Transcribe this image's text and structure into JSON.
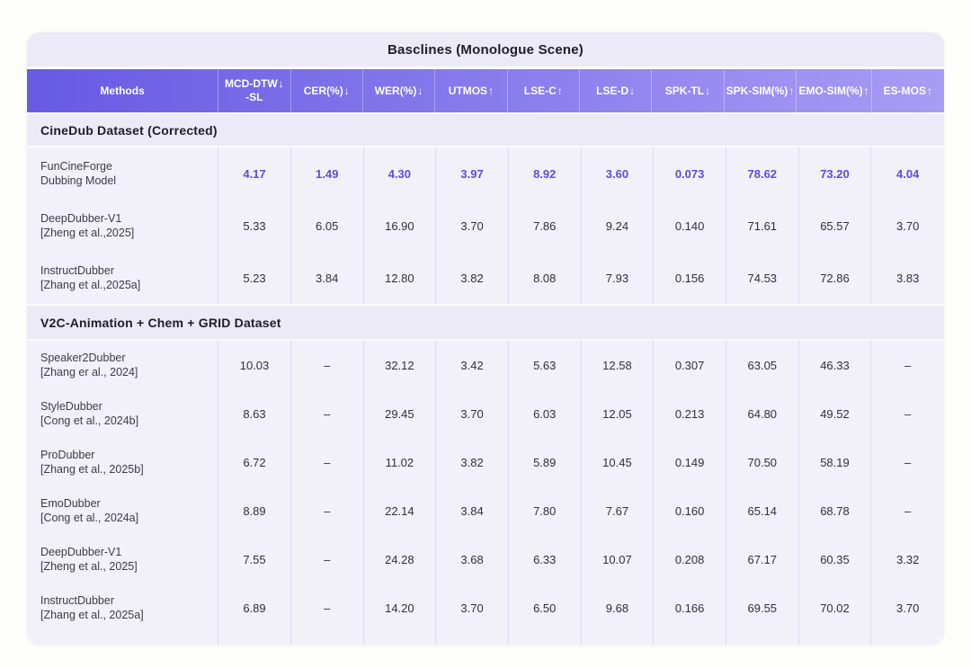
{
  "title": "Basclines (Monologue Scene)",
  "icons": {
    "arrow_up": "↑",
    "arrow_down": "↓"
  },
  "colors": {
    "page_bg": "#FDFDF9",
    "card_bg": "#ECEAF6",
    "data_bg": "#F2F1FA",
    "header_gradient_start": "#675AE4",
    "header_gradient_end": "#A89CF4",
    "header_text": "#FFFFFF",
    "divider_light": "#FAFAFD",
    "cell_border": "#DBD8EA",
    "heading_text": "#1E1D2B",
    "method_text": "#3C3B49",
    "value_text": "#302F3C",
    "highlight_value": "#5D4CDC"
  },
  "chart_data": {
    "type": "table",
    "title": "Basclines (Monologue Scene)",
    "columns": [
      {
        "label": "Methods",
        "line2": null,
        "arrow": null
      },
      {
        "label": "MCD-DTW",
        "line2": "-SL",
        "arrow": "down"
      },
      {
        "label": "CER(%)",
        "line2": null,
        "arrow": "down"
      },
      {
        "label": "WER(%)",
        "line2": null,
        "arrow": "down"
      },
      {
        "label": "UTMOS",
        "line2": null,
        "arrow": "up"
      },
      {
        "label": "LSE-C",
        "line2": null,
        "arrow": "up"
      },
      {
        "label": "LSE-D",
        "line2": null,
        "arrow": "down"
      },
      {
        "label": "SPK-TL",
        "line2": null,
        "arrow": "down"
      },
      {
        "label": "SPK-SIM(%)",
        "line2": null,
        "arrow": "up"
      },
      {
        "label": "EMO-SIM(%)",
        "line2": null,
        "arrow": "up"
      },
      {
        "label": "ES-MOS",
        "line2": null,
        "arrow": "up"
      }
    ],
    "sections": [
      {
        "heading": "CineDub Dataset (Corrected)",
        "rows": [
          {
            "line1": "FunCineForge",
            "line2": "Dubbing Model",
            "highlight": true,
            "values": [
              "4.17",
              "1.49",
              "4.30",
              "3.97",
              "8.92",
              "3.60",
              "0.073",
              "78.62",
              "73.20",
              "4.04"
            ]
          },
          {
            "line1": "DeepDubber-V1",
            "line2": "[Zheng et al.,2025]",
            "highlight": false,
            "values": [
              "5.33",
              "6.05",
              "16.90",
              "3.70",
              "7.86",
              "9.24",
              "0.140",
              "71.61",
              "65.57",
              "3.70"
            ]
          },
          {
            "line1": "InstructDubber",
            "line2": "[Zhang et al.,2025a]",
            "highlight": false,
            "values": [
              "5.23",
              "3.84",
              "12.80",
              "3.82",
              "8.08",
              "7.93",
              "0.156",
              "74.53",
              "72.86",
              "3.83"
            ]
          }
        ]
      },
      {
        "heading": "V2C-Animation + Chem + GRID Dataset",
        "rows": [
          {
            "line1": "Speaker2Dubber",
            "line2": "[Zhang er al., 2024]",
            "highlight": false,
            "values": [
              "10.03",
              "–",
              "32.12",
              "3.42",
              "5.63",
              "12.58",
              "0.307",
              "63.05",
              "46.33",
              "–"
            ]
          },
          {
            "line1": "StyleDubber",
            "line2": "[Cong et al., 2024b]",
            "highlight": false,
            "values": [
              "8.63",
              "–",
              "29.45",
              "3.70",
              "6.03",
              "12.05",
              "0.213",
              "64.80",
              "49.52",
              "–"
            ]
          },
          {
            "line1": "ProDubber",
            "line2": "[Zhang et al., 2025b]",
            "highlight": false,
            "values": [
              "6.72",
              "–",
              "11.02",
              "3.82",
              "5.89",
              "10.45",
              "0.149",
              "70.50",
              "58.19",
              "–"
            ]
          },
          {
            "line1": "EmoDubber",
            "line2": "[Cong et al., 2024a]",
            "highlight": false,
            "values": [
              "8.89",
              "–",
              "22.14",
              "3.84",
              "7.80",
              "7.67",
              "0.160",
              "65.14",
              "68.78",
              "–"
            ]
          },
          {
            "line1": "DeepDubber-V1",
            "line2": "[Zheng et al., 2025]",
            "highlight": false,
            "values": [
              "7.55",
              "–",
              "24.28",
              "3.68",
              "6.33",
              "10.07",
              "0.208",
              "67.17",
              "60.35",
              "3.32"
            ]
          },
          {
            "line1": "InstructDubber",
            "line2": "[Zhang et al., 2025a]",
            "highlight": false,
            "values": [
              "6.89",
              "–",
              "14.20",
              "3.70",
              "6.50",
              "9.68",
              "0.166",
              "69.55",
              "70.02",
              "3.70"
            ]
          }
        ]
      }
    ]
  }
}
